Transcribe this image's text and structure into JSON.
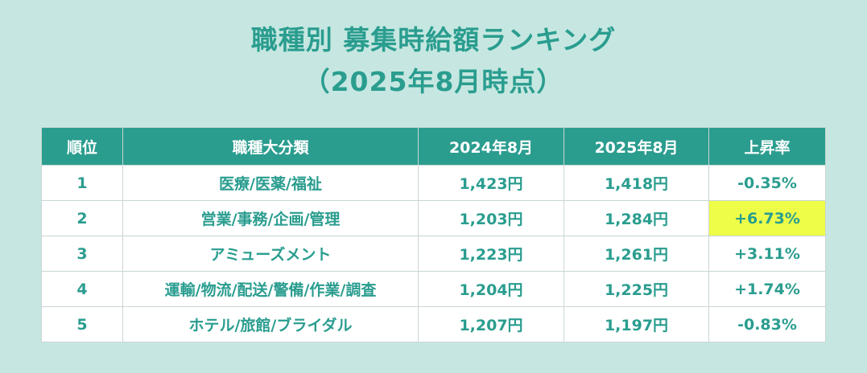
{
  "title": {
    "line1": "職種別 募集時給額ランキング",
    "line2": "（2025年8月時点）"
  },
  "colors": {
    "background": "#c6e7e1",
    "accent": "#2a9d8f",
    "highlight": "#eefd47"
  },
  "chart_data": {
    "type": "table",
    "columns": [
      "順位",
      "職種大分類",
      "2024年8月",
      "2025年8月",
      "上昇率"
    ],
    "rows": [
      [
        "1",
        "医療/医薬/福祉",
        "1,423円",
        "1,418円",
        "-0.35%"
      ],
      [
        "2",
        "営業/事務/企画/管理",
        "1,203円",
        "1,284円",
        "+6.73%"
      ],
      [
        "3",
        "アミューズメント",
        "1,223円",
        "1,261円",
        "+3.11%"
      ],
      [
        "4",
        "運輸/物流/配送/警備/作業/調査",
        "1,204円",
        "1,225円",
        "+1.74%"
      ],
      [
        "5",
        "ホテル/旅館/ブライダル",
        "1,207円",
        "1,197円",
        "-0.83%"
      ]
    ],
    "highlighted_cell": {
      "row": 1,
      "column": 4
    }
  }
}
